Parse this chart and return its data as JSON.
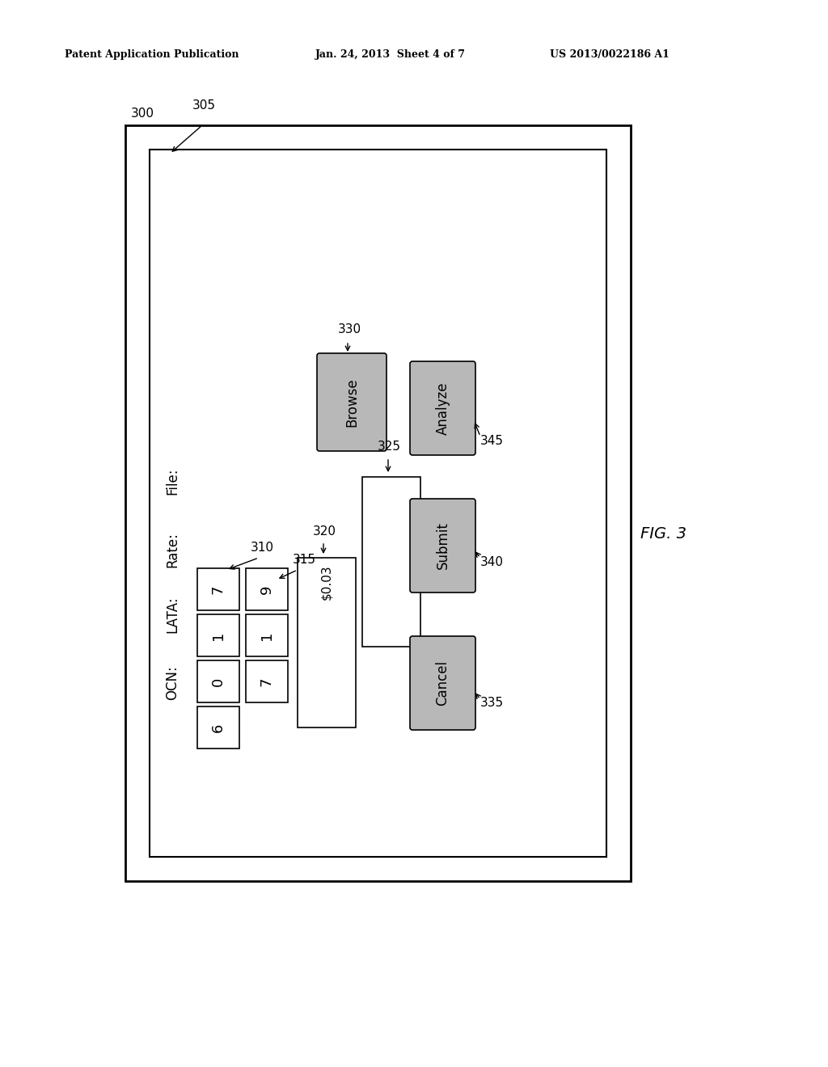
{
  "bg_color": "#ffffff",
  "header_left": "Patent Application Publication",
  "header_mid": "Jan. 24, 2013  Sheet 4 of 7",
  "header_right": "US 2013/0022186 A1",
  "fig_label": "FIG. 3",
  "label_300": "300",
  "label_305": "305",
  "label_310": "310",
  "label_315": "315",
  "label_320": "320",
  "label_325": "325",
  "label_330": "330",
  "label_335": "335",
  "label_340": "340",
  "label_345": "345",
  "ocn_label": "OCN:",
  "lata_label": "LATA:",
  "rate_label": "Rate:",
  "file_label": "File:",
  "ocn_digits": [
    "6",
    "0",
    "1",
    "7"
  ],
  "lata_digits": [
    "7",
    "1",
    "9"
  ],
  "rate_value": "$0.03",
  "browse_text": "Browse",
  "cancel_text": "Cancel",
  "submit_text": "Submit",
  "analyze_text": "Analyze",
  "button_gray": "#b8b8b8",
  "text_color": "#000000"
}
